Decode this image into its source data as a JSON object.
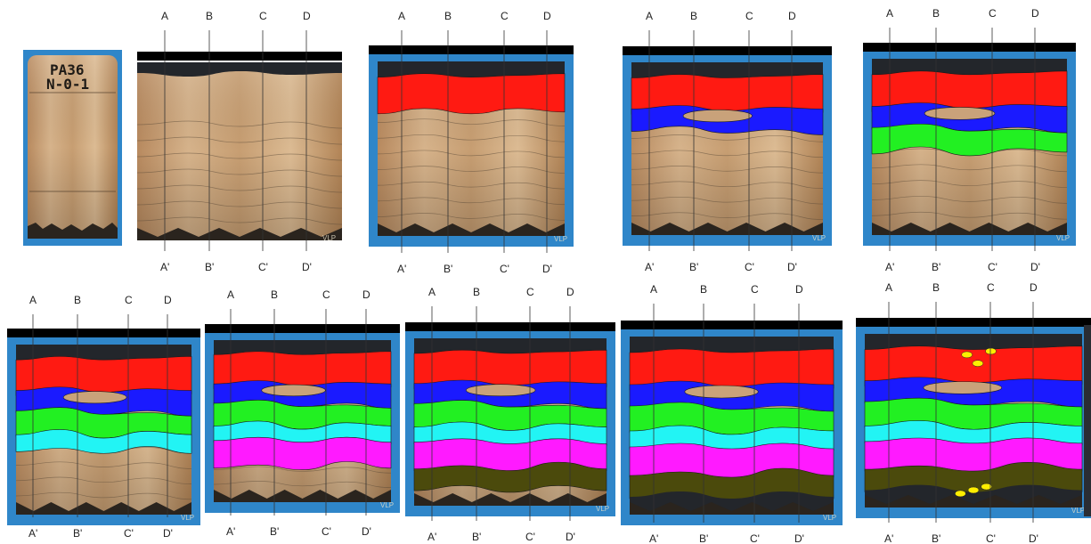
{
  "sample": {
    "line1": "PA36",
    "line2": "N-0-1"
  },
  "section_labels": {
    "top": [
      "A",
      "B",
      "C",
      "D"
    ],
    "bottom": [
      "A'",
      "B'",
      "C'",
      "D'"
    ]
  },
  "watermark": "VLP",
  "colors": {
    "background": "#ffffff",
    "frame": "#2f86c9",
    "top_bar": "#000000",
    "core": "#c9a27a",
    "dark": "#23262b",
    "layers": [
      "#ff1a12",
      "#1a1aff",
      "#22f022",
      "#22f4f4",
      "#ff1aff",
      "#4b4a0c"
    ],
    "blobs": "#ffee00"
  },
  "stages": [
    {
      "label_top": "A  B  C  D",
      "layers_painted": 0,
      "blobs": false
    },
    {
      "label_top": "A  B  C  D",
      "layers_painted": 1,
      "blobs": false
    },
    {
      "label_top": "A  B  C  D",
      "layers_painted": 2,
      "blobs": false
    },
    {
      "label_top": "A  B  C  D",
      "layers_painted": 3,
      "blobs": false
    },
    {
      "label_top": "A  B  C  D",
      "layers_painted": 4,
      "blobs": false
    },
    {
      "label_top": "A  B  C  D",
      "layers_painted": 5,
      "blobs": false
    },
    {
      "label_top": "A  B  C  D",
      "layers_painted": 6,
      "blobs": false
    },
    {
      "label_top": "A  B  C  D",
      "layers_painted": 7,
      "blobs": false
    },
    {
      "label_top": "A  B  C  D",
      "layers_painted": 7,
      "blobs": true
    }
  ]
}
